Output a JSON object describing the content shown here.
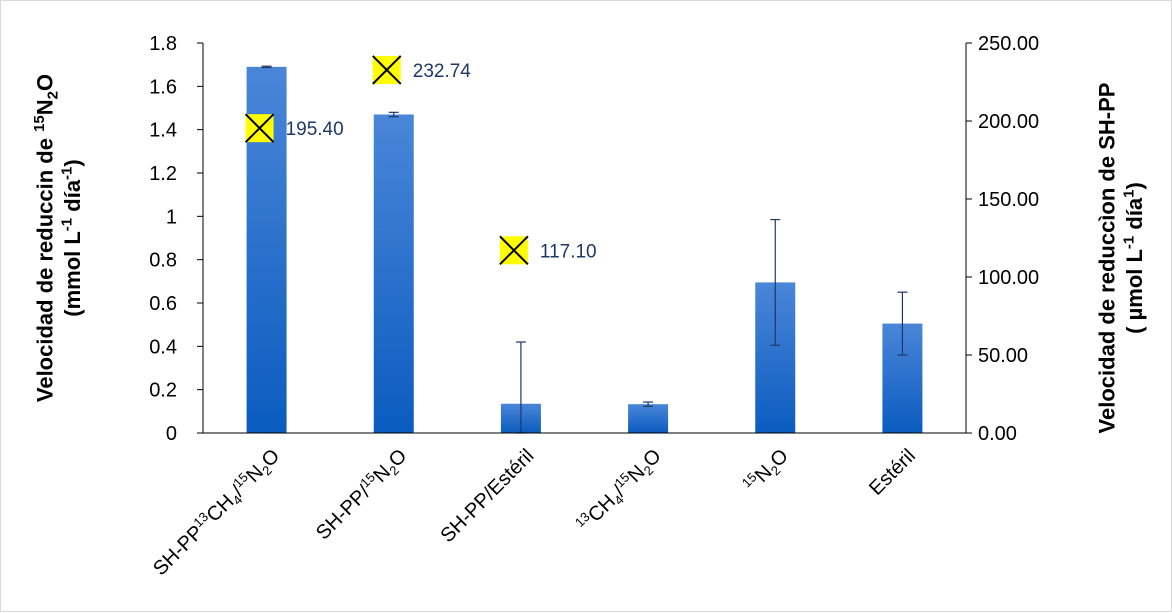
{
  "chart_data": {
    "type": "bar",
    "categories": [
      "SH-PP¹³CH₄/¹⁵N₂O",
      "SH-PP/¹⁵N₂O",
      "SH-PP/Estéril",
      "¹³CH₄/¹⁵N₂O",
      "¹⁵N₂O",
      "Estéril"
    ],
    "category_parts": [
      [
        {
          "t": "SH-PP"
        },
        {
          "t": "13",
          "sup": true
        },
        {
          "t": "CH"
        },
        {
          "t": "4",
          "sub": true
        },
        {
          "t": "/"
        },
        {
          "t": "15",
          "sup": true
        },
        {
          "t": "N"
        },
        {
          "t": "2",
          "sub": true
        },
        {
          "t": "O"
        }
      ],
      [
        {
          "t": "SH-PP/"
        },
        {
          "t": "15",
          "sup": true
        },
        {
          "t": "N"
        },
        {
          "t": "2",
          "sub": true
        },
        {
          "t": "O"
        }
      ],
      [
        {
          "t": "SH-PP/Estéril"
        }
      ],
      [
        {
          "t": "13",
          "sup": true
        },
        {
          "t": "CH"
        },
        {
          "t": "4",
          "sub": true
        },
        {
          "t": "/"
        },
        {
          "t": "15",
          "sup": true
        },
        {
          "t": "N"
        },
        {
          "t": "2",
          "sub": true
        },
        {
          "t": "O"
        }
      ],
      [
        {
          "t": "15",
          "sup": true
        },
        {
          "t": "N"
        },
        {
          "t": "2",
          "sub": true
        },
        {
          "t": "O"
        }
      ],
      [
        {
          "t": "Estéril"
        }
      ]
    ],
    "series": [
      {
        "axis": "left",
        "values": [
          1.69,
          1.47,
          0.135,
          0.133,
          0.695,
          0.505
        ],
        "error": [
          0.003,
          0.01,
          0.285,
          0.01,
          0.29,
          0.145
        ]
      },
      {
        "axis": "right",
        "marker": "x-square",
        "points": [
          {
            "category_index": 0,
            "value": 195.4,
            "label": "195.40"
          },
          {
            "category_index": 1,
            "value": 232.74,
            "label": "232.74"
          },
          {
            "category_index": 2,
            "value": 117.1,
            "label": "117.10"
          }
        ]
      }
    ],
    "y_left": {
      "min": 0,
      "max": 1.8,
      "ticks": [
        "0",
        "0.2",
        "0.4",
        "0.6",
        "0.8",
        "1",
        "1.2",
        "1.4",
        "1.6",
        "1.8"
      ],
      "label_line1": [
        {
          "t": "Velocidad de reduccin de "
        },
        {
          "t": "15",
          "sup": true
        },
        {
          "t": "N"
        },
        {
          "t": "2",
          "sub": true
        },
        {
          "t": "O"
        }
      ],
      "label_line2": [
        {
          "t": "(mmol L"
        },
        {
          "t": "-1",
          "sup": true
        },
        {
          "t": " día"
        },
        {
          "t": "-1",
          "sup": true
        },
        {
          "t": ")"
        }
      ]
    },
    "y_right": {
      "min": 0,
      "max": 250,
      "ticks": [
        "0.00",
        "50.00",
        "100.00",
        "150.00",
        "200.00",
        "250.00"
      ],
      "label_line1": [
        {
          "t": "Velocidad de reduccìon de SH-PP"
        }
      ],
      "label_line2": [
        {
          "t": "( µmol L"
        },
        {
          "t": "-1",
          "sup": true
        },
        {
          "t": " día"
        },
        {
          "t": "1",
          "sup": true
        },
        {
          "t": ")"
        }
      ]
    },
    "grid": false,
    "legend": "none",
    "colors": {
      "bar_top": "#4a86d8",
      "bar_bottom": "#0b5cc0",
      "error_bar": "#1f3864",
      "marker_fill": "#ffff00",
      "marker_x": "#000000",
      "data_label": "#1f3864",
      "axis": "#000000"
    }
  }
}
